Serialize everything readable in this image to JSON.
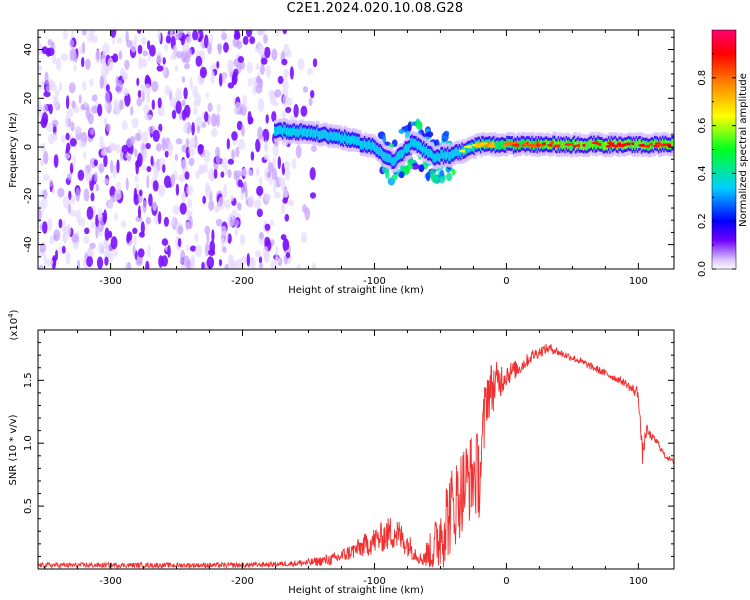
{
  "figure": {
    "title": "C2E1.2024.020.10.08.G28"
  },
  "chart_data": [
    {
      "type": "heatmap",
      "title": "",
      "xlabel": "Height of straight line (km)",
      "ylabel": "Frequency (Hz)",
      "xlim": [
        -355,
        127
      ],
      "ylim": [
        -50,
        48
      ],
      "xticks": [
        -300,
        -200,
        -100,
        0,
        100
      ],
      "yticks": [
        -40,
        -20,
        0,
        20,
        40
      ],
      "colorbar": {
        "label": "Normalized spectral amplitude",
        "range": [
          0,
          1
        ],
        "ticks": [
          0.0,
          0.2,
          0.4,
          0.6,
          0.8
        ],
        "colors": [
          "#ffffff",
          "#5500ff",
          "#0000ff",
          "#00c8ff",
          "#00ff00",
          "#ffff00",
          "#ff8000",
          "#ff0000",
          "#ff0070"
        ]
      },
      "noise_region": {
        "x": [
          -355,
          -165
        ],
        "amplitude_range": [
          0.05,
          0.15
        ]
      },
      "ridge": {
        "x": [
          -175,
          -150,
          -125,
          -100,
          -85,
          -70,
          -55,
          -40,
          -30,
          -20,
          -10,
          0,
          20,
          40,
          60,
          80,
          100,
          127
        ],
        "freq": [
          7,
          6,
          4,
          0,
          -6,
          2,
          -4,
          -3,
          -1,
          1,
          1,
          1,
          1,
          1,
          1,
          1,
          1,
          1
        ],
        "amplitude": [
          0.35,
          0.45,
          0.5,
          0.5,
          0.45,
          0.5,
          0.45,
          0.5,
          0.6,
          0.7,
          0.75,
          0.8,
          0.85,
          0.9,
          0.9,
          0.92,
          0.9,
          0.88
        ]
      },
      "spread_region": {
        "x": [
          -95,
          -40
        ],
        "freq_range": [
          -18,
          8
        ]
      }
    },
    {
      "type": "line",
      "title": "",
      "xlabel": "Height of straight line (km)",
      "ylabel": "SNR (10 * v/v)",
      "yunit_note": "(x10",
      "yunit_exp": "4",
      "yunit_close": ")",
      "xlim": [
        -355,
        127
      ],
      "ylim": [
        0,
        1.9
      ],
      "xticks": [
        -300,
        -200,
        -100,
        0,
        100
      ],
      "yticks": [
        0.5,
        1.0,
        1.5
      ],
      "yticklabels": [
        "0.5",
        "1.0",
        "1.5"
      ],
      "series": [
        {
          "color": "#f03030",
          "x": [
            -355,
            -300,
            -250,
            -200,
            -170,
            -150,
            -130,
            -115,
            -105,
            -95,
            -85,
            -75,
            -65,
            -55,
            -48,
            -40,
            -35,
            -30,
            -25,
            -20,
            -15,
            -10,
            -5,
            0,
            10,
            20,
            30,
            35,
            40,
            50,
            60,
            70,
            80,
            90,
            95,
            100,
            103,
            106,
            110,
            115,
            120,
            127
          ],
          "y": [
            0.03,
            0.03,
            0.03,
            0.03,
            0.04,
            0.05,
            0.08,
            0.15,
            0.2,
            0.25,
            0.3,
            0.2,
            0.08,
            0.15,
            0.35,
            0.5,
            0.6,
            0.7,
            0.75,
            0.75,
            1.4,
            1.45,
            1.5,
            1.55,
            1.6,
            1.7,
            1.75,
            1.75,
            1.72,
            1.68,
            1.63,
            1.58,
            1.53,
            1.48,
            1.43,
            1.4,
            0.9,
            1.1,
            1.05,
            1.0,
            0.9,
            0.85
          ],
          "noise": [
            0.02,
            0.02,
            0.02,
            0.02,
            0.02,
            0.03,
            0.05,
            0.07,
            0.1,
            0.12,
            0.15,
            0.1,
            0.05,
            0.2,
            0.35,
            0.35,
            0.35,
            0.35,
            0.35,
            0.35,
            0.25,
            0.2,
            0.15,
            0.1,
            0.06,
            0.05,
            0.04,
            0.04,
            0.03,
            0.03,
            0.03,
            0.03,
            0.03,
            0.03,
            0.04,
            0.06,
            0.08,
            0.06,
            0.03,
            0.03,
            0.02,
            0.02
          ]
        }
      ]
    }
  ]
}
